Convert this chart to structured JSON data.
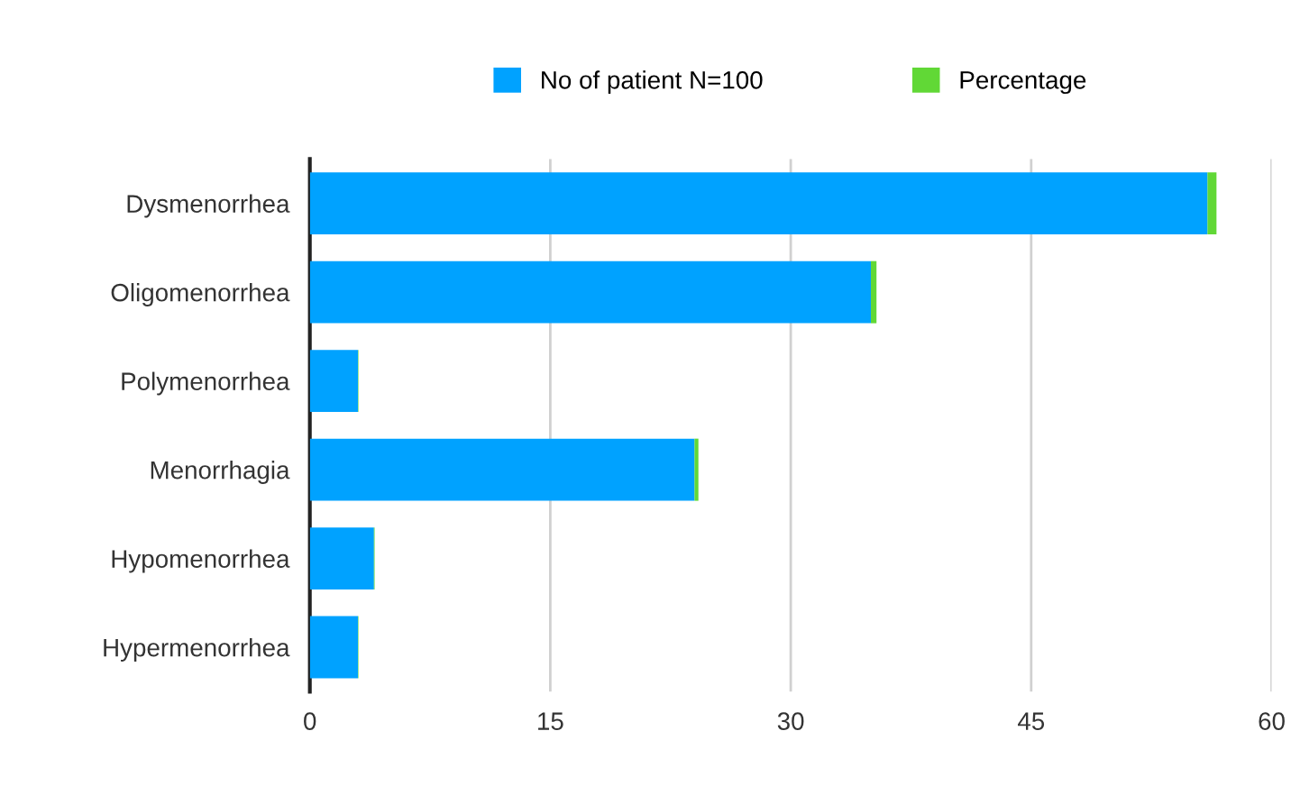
{
  "chart_data": {
    "type": "bar",
    "orientation": "horizontal",
    "stacked": true,
    "categories": [
      "Dysmenorrhea",
      "Oligomenorrhea",
      "Polymenorrhea",
      "Menorrhagia",
      "Hypomenorrhea",
      "Hypermenorrhea"
    ],
    "series": [
      {
        "name": "No of patient N=100",
        "color": "#00a2ff",
        "values": [
          56,
          35,
          3,
          24,
          4,
          3
        ]
      },
      {
        "name": "Percentage",
        "color": "#61d836",
        "values": [
          0.56,
          0.35,
          0.03,
          0.24,
          0.04,
          0.03
        ]
      }
    ],
    "xlim": [
      0,
      60
    ],
    "xticks": [
      0,
      15,
      30,
      45,
      60
    ],
    "grid": "x",
    "legend": "top"
  }
}
